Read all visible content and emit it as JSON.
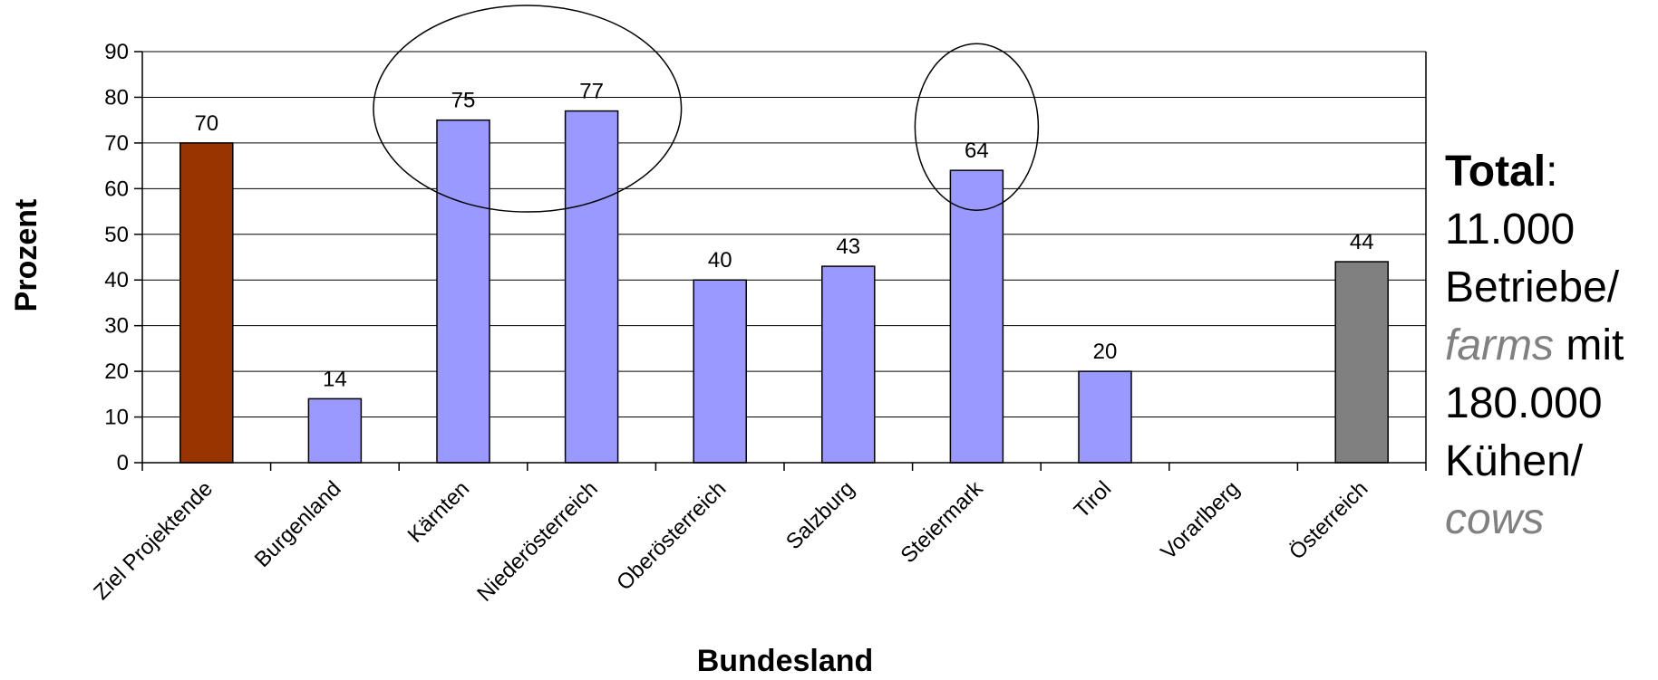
{
  "chart_data": {
    "type": "bar",
    "categories": [
      "Ziel Projektende",
      "Burgenland",
      "Kärnten",
      "Niederösterreich",
      "Oberösterreich",
      "Salzburg",
      "Steiermark",
      "Tirol",
      "Vorarlberg",
      "Österreich"
    ],
    "values": [
      70,
      14,
      75,
      77,
      40,
      43,
      64,
      20,
      null,
      44
    ],
    "data_labels": [
      "70",
      "14",
      "75",
      "77",
      "40",
      "43",
      "64",
      "20",
      "",
      "44"
    ],
    "ylabel": "Prozent",
    "xlabel": "Bundesland",
    "ylim": [
      0,
      90
    ],
    "yticks": [
      0,
      10,
      20,
      30,
      40,
      50,
      60,
      70,
      80,
      90
    ],
    "grid": true,
    "legend": "none",
    "colors": {
      "default": "#9999ff",
      "target": "#993300",
      "total": "#808080",
      "edge": "#000000",
      "grid": "#000000"
    },
    "bar_color_keys": [
      "target",
      "default",
      "default",
      "default",
      "default",
      "default",
      "default",
      "default",
      "default",
      "total"
    ],
    "highlighted": [
      "Kärnten",
      "Niederösterreich",
      "Steiermark"
    ]
  },
  "side_note": {
    "total_label": "Total",
    "colon": ":",
    "line_count": "11.000",
    "betriebe": "Betriebe/",
    "farms": "farms",
    "mit": " mit",
    "cow_count": "180.000",
    "kuehen": "Kühen/",
    "cows": "cows"
  }
}
